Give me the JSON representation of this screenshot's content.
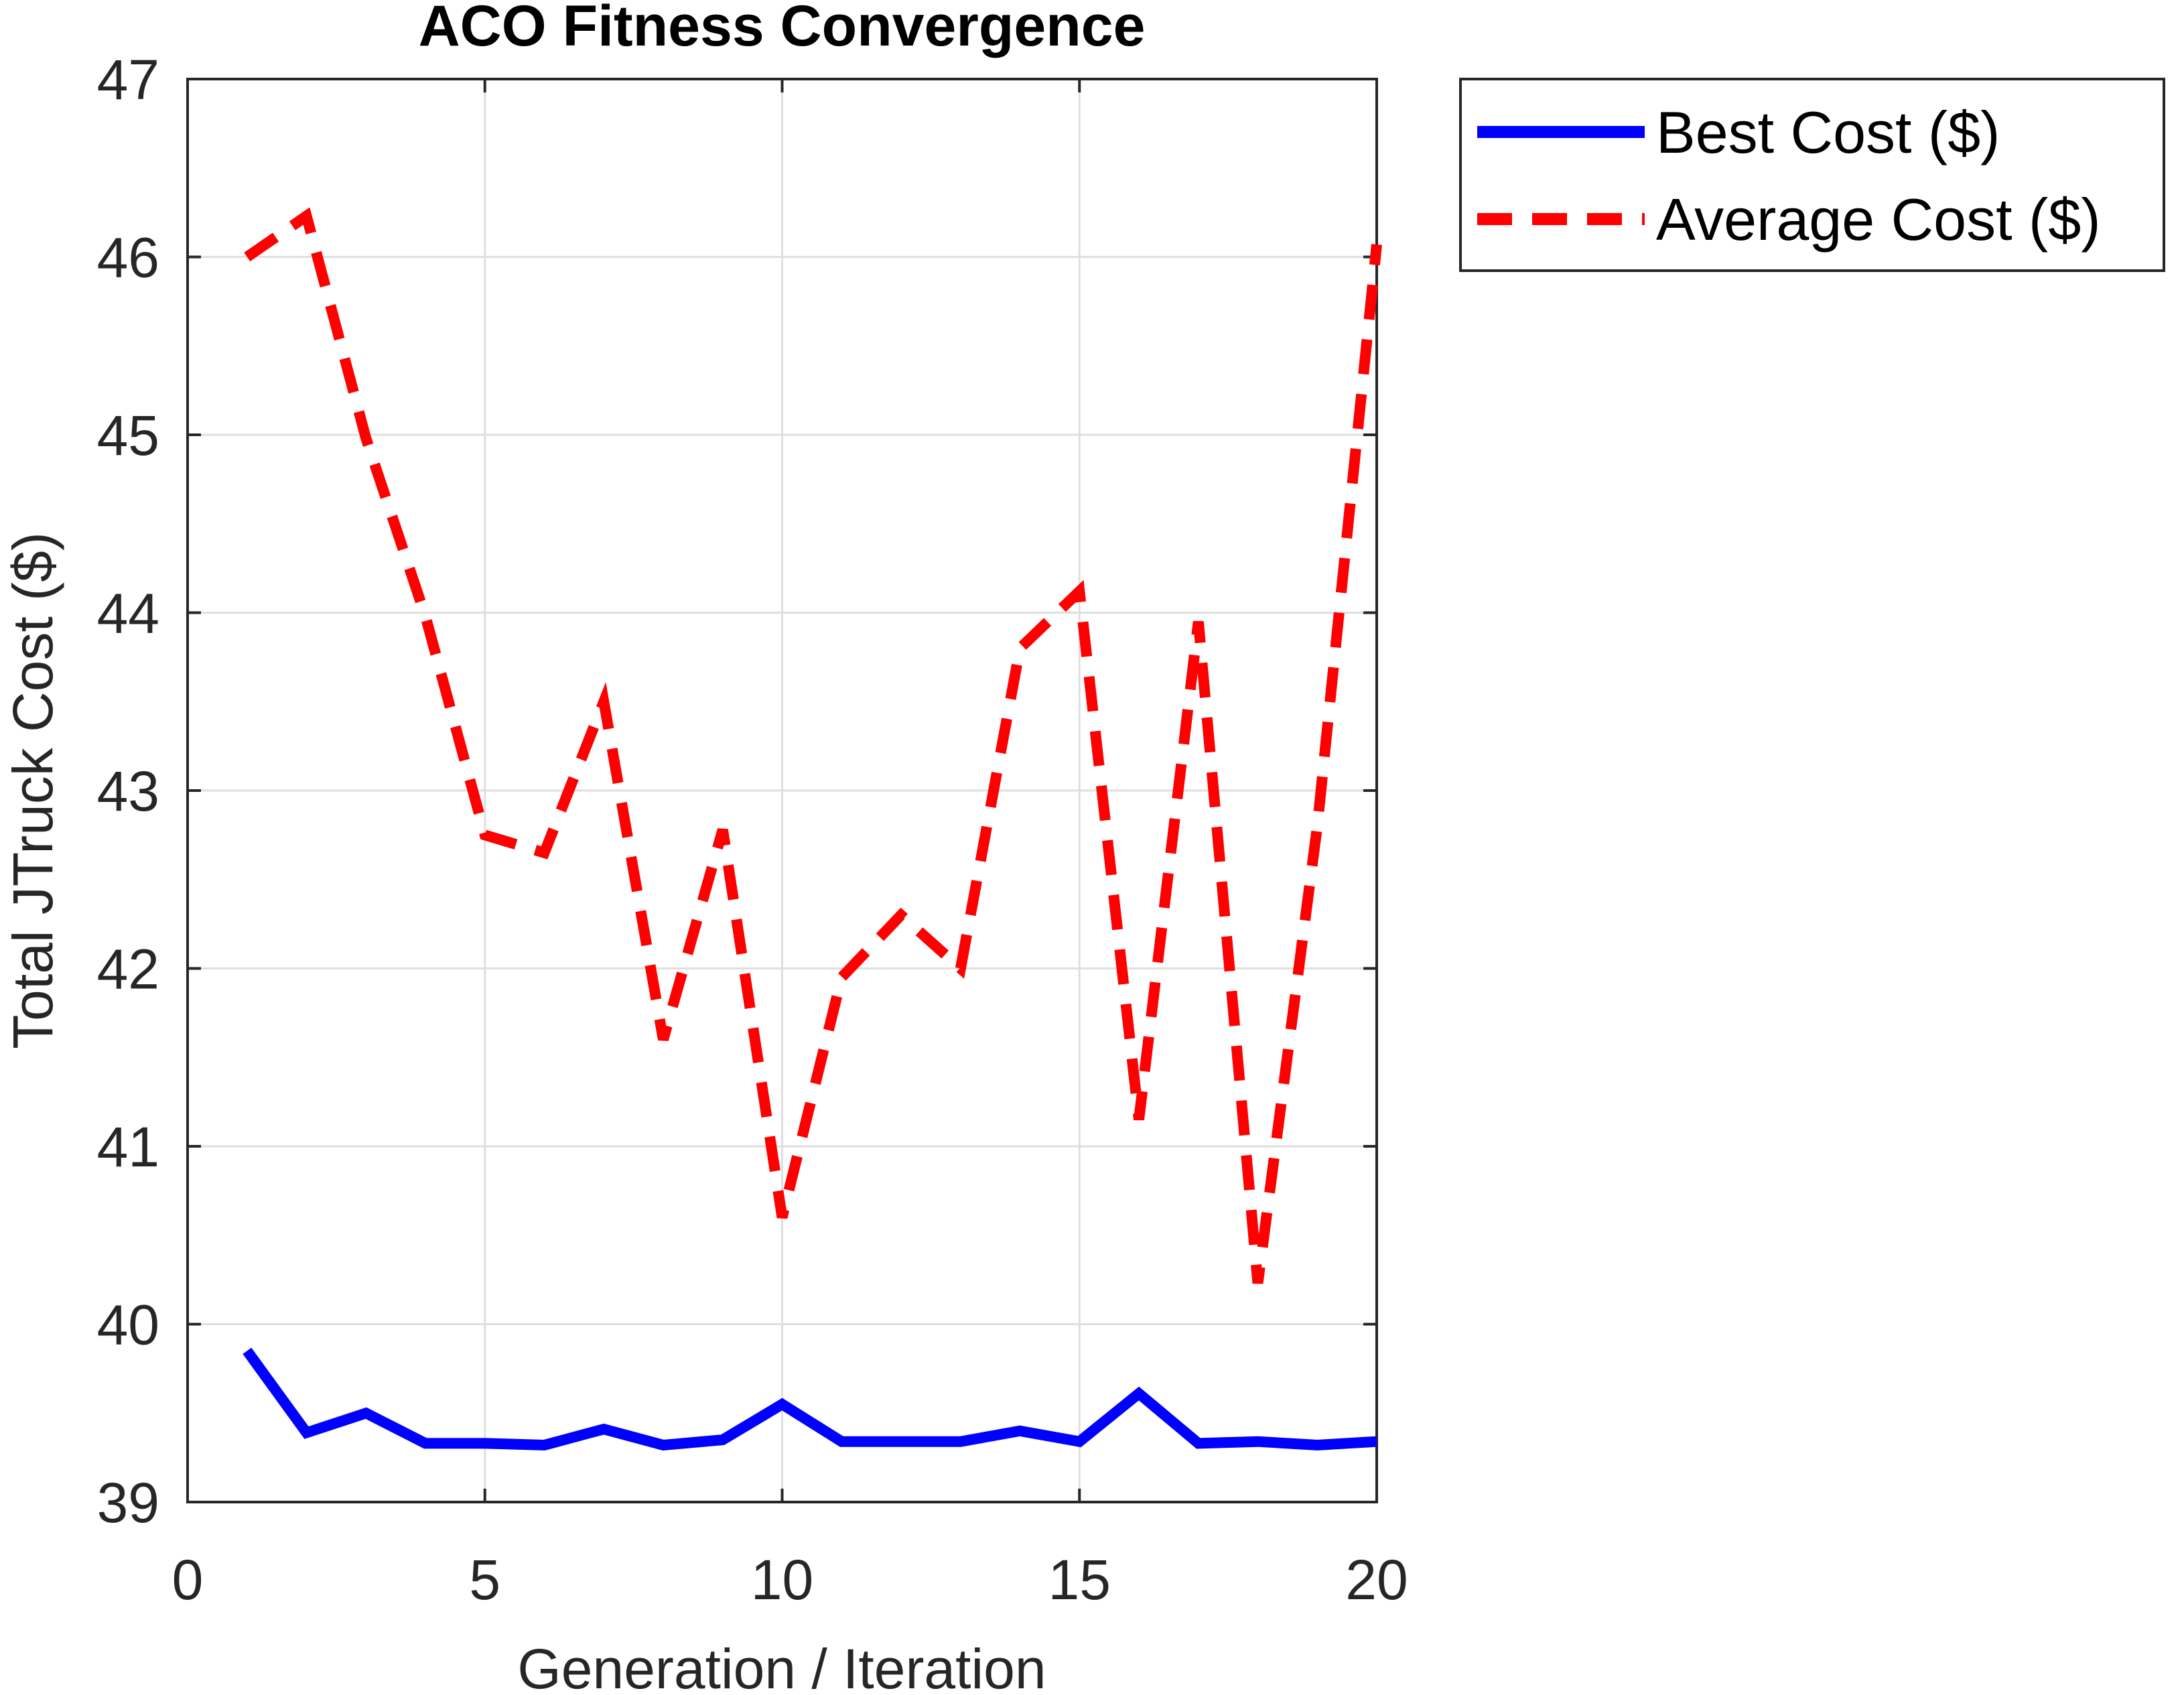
{
  "chart_data": {
    "type": "line",
    "title": "ACO Fitness Convergence",
    "xlabel": "Generation / Iteration",
    "ylabel": "Total JTruck Cost ($)",
    "xlim": [
      0,
      20
    ],
    "ylim": [
      39,
      47
    ],
    "xticks": [
      0,
      5,
      10,
      15,
      20
    ],
    "yticks": [
      39,
      40,
      41,
      42,
      43,
      44,
      45,
      46,
      47
    ],
    "grid": true,
    "legend_position": "outside-top-right",
    "x": [
      1,
      2,
      3,
      4,
      5,
      6,
      7,
      8,
      9,
      10,
      11,
      12,
      13,
      14,
      15,
      16,
      17,
      18,
      19,
      20
    ],
    "series": [
      {
        "name": "Best Cost ($)",
        "color": "#0000ff",
        "style": "solid",
        "values": [
          39.85,
          39.39,
          39.5,
          39.33,
          39.33,
          39.32,
          39.41,
          39.32,
          39.35,
          39.55,
          39.34,
          39.34,
          39.34,
          39.4,
          39.34,
          39.61,
          39.33,
          39.34,
          39.32,
          39.34
        ]
      },
      {
        "name": "Average Cost ($)",
        "color": "#ff0000",
        "style": "dashed",
        "values": [
          46.0,
          46.23,
          44.98,
          43.98,
          42.75,
          42.65,
          43.5,
          41.6,
          42.78,
          40.6,
          41.95,
          42.3,
          42.0,
          43.8,
          44.12,
          41.15,
          43.95,
          40.23,
          42.8,
          46.07
        ]
      }
    ]
  }
}
